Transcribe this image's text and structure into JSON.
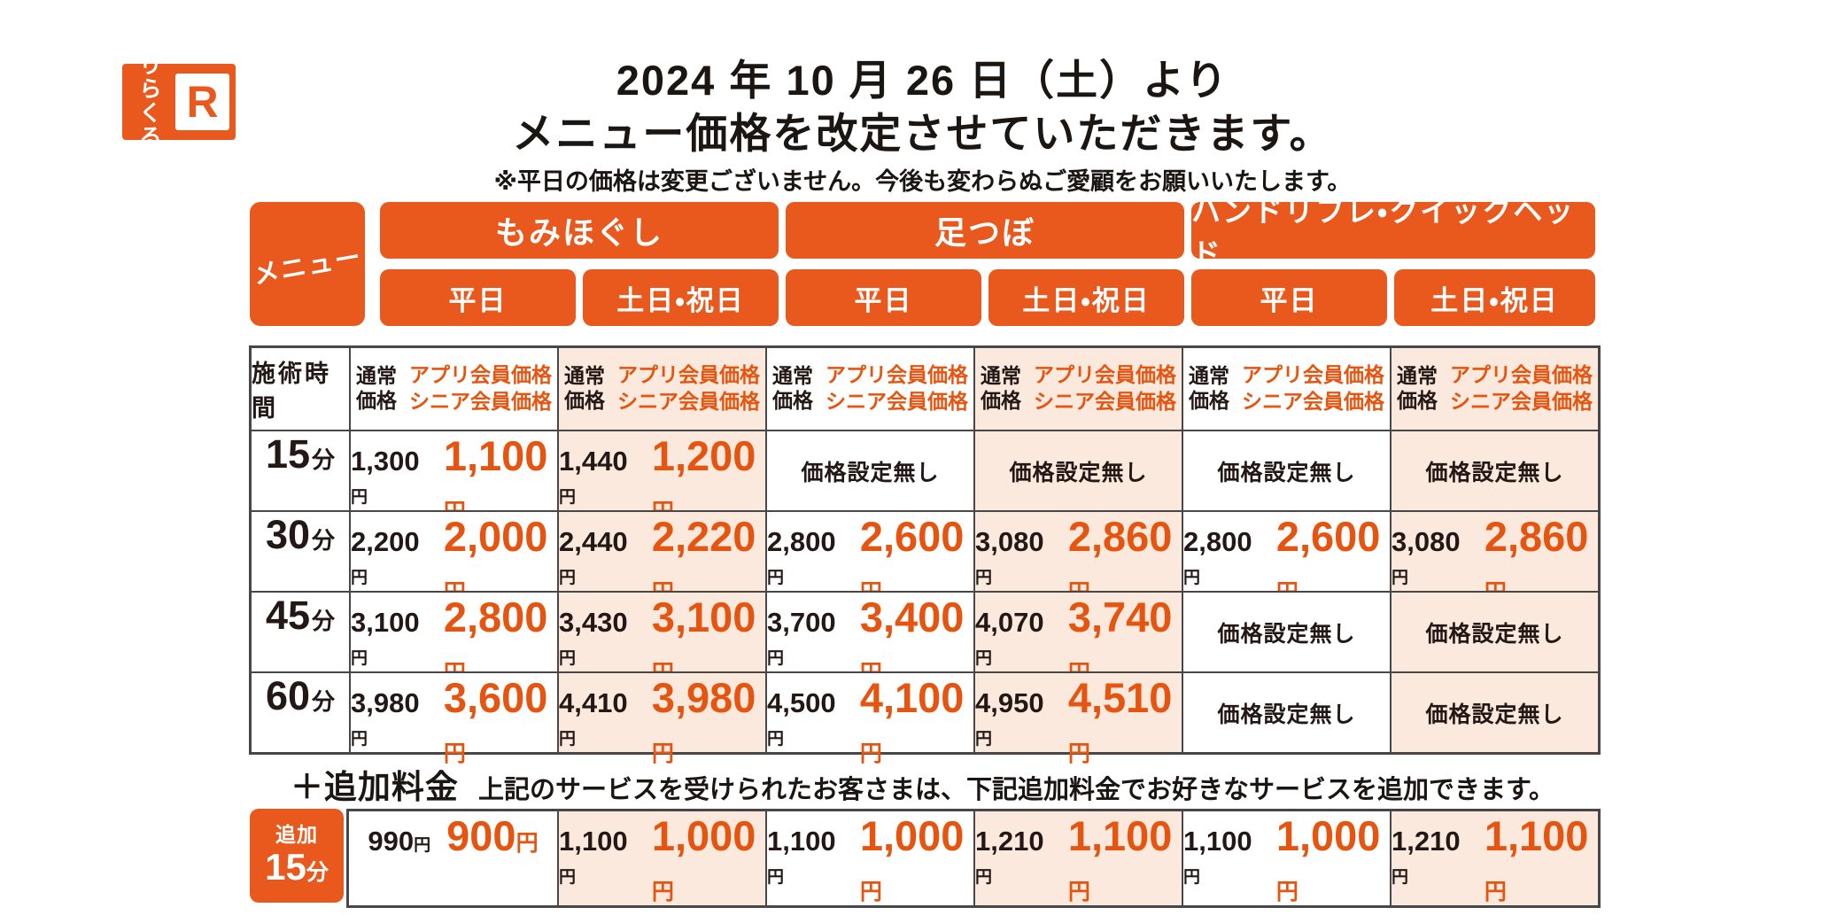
{
  "logo": {
    "line1": "りら",
    "line2": "くる",
    "mark": "R"
  },
  "header": {
    "title_line1": "2024 年 10 月 26 日（土）より",
    "title_line2": "メニュー価格を改定させていただきます。",
    "note": "※平日の価格は変更ございません。今後も変わらぬご愛顧をお願いいたします。"
  },
  "colors": {
    "brand_orange": "#e9581c",
    "weekend_peach": "#fbe9dd",
    "price_orange": "#e65510",
    "border_gray": "#474747"
  },
  "band": {
    "corner": "メニュー",
    "services": [
      {
        "name": "もみほぐし"
      },
      {
        "name": "足つぼ"
      },
      {
        "name": "ハンドリフレ・クイックヘッド"
      }
    ],
    "day_labels": [
      "平日",
      "土日・祝日",
      "平日",
      "土日・祝日",
      "平日",
      "土日・祝日"
    ]
  },
  "table": {
    "time_header": "施術時間",
    "normal_l1": "通常",
    "normal_l2": "価格",
    "member_l1": "アプリ会員価格",
    "member_l2": "シニア会員価格",
    "yen": "円",
    "rows": [
      {
        "time": "15",
        "unit": "分",
        "cells": [
          {
            "n": "1,300",
            "m": "1,100"
          },
          {
            "n": "1,440",
            "m": "1,200"
          },
          {
            "none": "価格設定無し"
          },
          {
            "none": "価格設定無し"
          },
          {
            "none": "価格設定無し"
          },
          {
            "none": "価格設定無し"
          }
        ]
      },
      {
        "time": "30",
        "unit": "分",
        "cells": [
          {
            "n": "2,200",
            "m": "2,000"
          },
          {
            "n": "2,440",
            "m": "2,220"
          },
          {
            "n": "2,800",
            "m": "2,600"
          },
          {
            "n": "3,080",
            "m": "2,860"
          },
          {
            "n": "2,800",
            "m": "2,600"
          },
          {
            "n": "3,080",
            "m": "2,860"
          }
        ]
      },
      {
        "time": "45",
        "unit": "分",
        "cells": [
          {
            "n": "3,100",
            "m": "2,800"
          },
          {
            "n": "3,430",
            "m": "3,100"
          },
          {
            "n": "3,700",
            "m": "3,400"
          },
          {
            "n": "4,070",
            "m": "3,740"
          },
          {
            "none": "価格設定無し"
          },
          {
            "none": "価格設定無し"
          }
        ]
      },
      {
        "time": "60",
        "unit": "分",
        "cells": [
          {
            "n": "3,980",
            "m": "3,600"
          },
          {
            "n": "4,410",
            "m": "3,980"
          },
          {
            "n": "4,500",
            "m": "4,100"
          },
          {
            "n": "4,950",
            "m": "4,510"
          },
          {
            "none": "価格設定無し"
          },
          {
            "none": "価格設定無し"
          }
        ]
      }
    ]
  },
  "extra": {
    "heading": "＋追加料金",
    "desc": "上記のサービスを受けられたお客さまは、下記追加料金でお好きなサービスを追加できます。",
    "badge_top": "追加",
    "badge_time": "15",
    "badge_unit": "分",
    "cells": [
      {
        "n": "990",
        "m": "900"
      },
      {
        "n": "1,100",
        "m": "1,000"
      },
      {
        "n": "1,100",
        "m": "1,000"
      },
      {
        "n": "1,210",
        "m": "1,100"
      },
      {
        "n": "1,100",
        "m": "1,000"
      },
      {
        "n": "1,210",
        "m": "1,100"
      }
    ]
  }
}
